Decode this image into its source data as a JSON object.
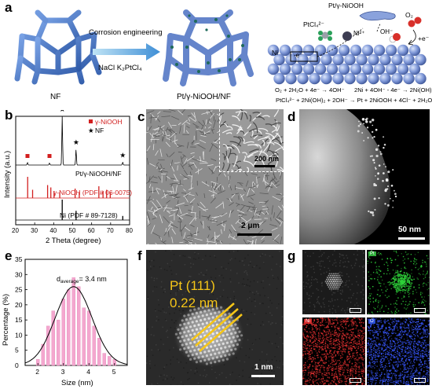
{
  "panel_labels": {
    "a": "a",
    "b": "b",
    "c": "c",
    "d": "d",
    "e": "e",
    "f": "f",
    "g": "g"
  },
  "panel_a": {
    "label_nf": "NF",
    "label_product": "Pt/γ-NiOOH/NF",
    "arrow_top": "Corrosion engineering",
    "arrow_bottom": "NaCl K₂PtCl₄",
    "mech_product": "Pt/γ-NiOOH",
    "ptcl": "PtCl₄²⁻",
    "ni2": "Ni²⁺",
    "oh": "OH⁻",
    "o2": "O₂",
    "plus_e": "+e⁻",
    "minus_e": "-e⁻",
    "ni_label": "Ni",
    "eq1": "O₂ + 2H₂O + 4e⁻ → 4OH⁻",
    "eq2": "2Ni + 4OH⁻ - 4e⁻ → 2Ni(OH)₂",
    "eq3": "PtCl₄²⁻ + 2Ni(OH)₂ + 2OH⁻ → Pt + 2NiOOH + 4Cl⁻ + 2H₂O"
  },
  "panel_c": {
    "scale_main": "2 μm",
    "scale_inset": "200 nm"
  },
  "panel_d": {
    "scale": "50 nm"
  },
  "panel_f": {
    "lattice_plane": "Pt (111)",
    "d_spacing": "0.22 nm",
    "scale": "1 nm"
  },
  "panel_g": {
    "map_pt": "Pt",
    "map_ni": "Ni",
    "map_o": "O"
  },
  "colors": {
    "nf_blue": "#4a78c8",
    "pink": "#f4a7cf",
    "gamma_red": "#d21f1f",
    "pt_gold": "#f5c518"
  },
  "chart_data": [
    {
      "type": "line",
      "panel": "b",
      "xlabel": "2 Theta (degree)",
      "ylabel": "Intensity (a.u.)",
      "xlim": [
        20,
        80
      ],
      "xticks": [
        "20",
        "30",
        "40",
        "50",
        "60",
        "70",
        "80"
      ],
      "legend": [
        "γ-NiOOH",
        "NF"
      ],
      "legend_position": "top-right",
      "series": [
        {
          "name": "Pt/γ-NiOOH/NF",
          "peaks": [
            {
              "x": 26.2,
              "h": 0.05,
              "marker": "square"
            },
            {
              "x": 37.8,
              "h": 0.04,
              "marker": "square"
            },
            {
              "x": 44.5,
              "h": 1.0,
              "marker": "star"
            },
            {
              "x": 51.8,
              "h": 0.32,
              "marker": "star"
            },
            {
              "x": 76.4,
              "h": 0.06,
              "marker": "star"
            }
          ],
          "label": "Pt/γ-NiOOH/NF"
        },
        {
          "name": "γ-NiOOH (PDF # 06-0075)",
          "peaks": [
            {
              "x": 26.3,
              "h": 0.9
            },
            {
              "x": 28.9,
              "h": 0.35
            },
            {
              "x": 36.8,
              "h": 0.55
            },
            {
              "x": 38.5,
              "h": 0.45
            },
            {
              "x": 40.2,
              "h": 0.3
            },
            {
              "x": 43.2,
              "h": 0.25
            },
            {
              "x": 51.3,
              "h": 0.4
            },
            {
              "x": 53.5,
              "h": 0.25
            },
            {
              "x": 63.8,
              "h": 0.5
            },
            {
              "x": 66.0,
              "h": 0.3
            },
            {
              "x": 67.9,
              "h": 0.35
            },
            {
              "x": 69.8,
              "h": 0.25
            }
          ],
          "label": "γ-NiOOH (PDF # 06-0075)"
        },
        {
          "name": "Ni (PDF # 89-7128)",
          "peaks": [
            {
              "x": 44.5,
              "h": 1.0
            },
            {
              "x": 51.8,
              "h": 0.45
            },
            {
              "x": 76.4,
              "h": 0.2
            }
          ],
          "label": "Ni (PDF # 89-7128)"
        }
      ]
    },
    {
      "type": "bar",
      "panel": "e",
      "xlabel": "Size (nm)",
      "ylabel": "Percentage (%)",
      "xlim": [
        1.5,
        5.5
      ],
      "ylim": [
        0,
        35
      ],
      "xticks": [
        "2",
        "3",
        "4",
        "5"
      ],
      "yticks": [
        "0",
        "5",
        "10",
        "15",
        "20",
        "25",
        "30",
        "35"
      ],
      "annotation": "d",
      "annotation_sub": "average",
      "annotation_value": "= 3.4 nm",
      "bin_centers": [
        2.0,
        2.2,
        2.4,
        2.6,
        2.8,
        3.0,
        3.2,
        3.4,
        3.6,
        3.8,
        4.0,
        4.2,
        4.4,
        4.6,
        4.8,
        5.0
      ],
      "values": [
        2,
        7,
        13,
        18,
        15,
        22,
        25,
        29,
        26,
        19,
        18,
        13,
        9,
        4,
        3,
        2
      ],
      "fit": {
        "mean": 3.4,
        "sigma": 0.72,
        "peak": 26
      }
    }
  ]
}
